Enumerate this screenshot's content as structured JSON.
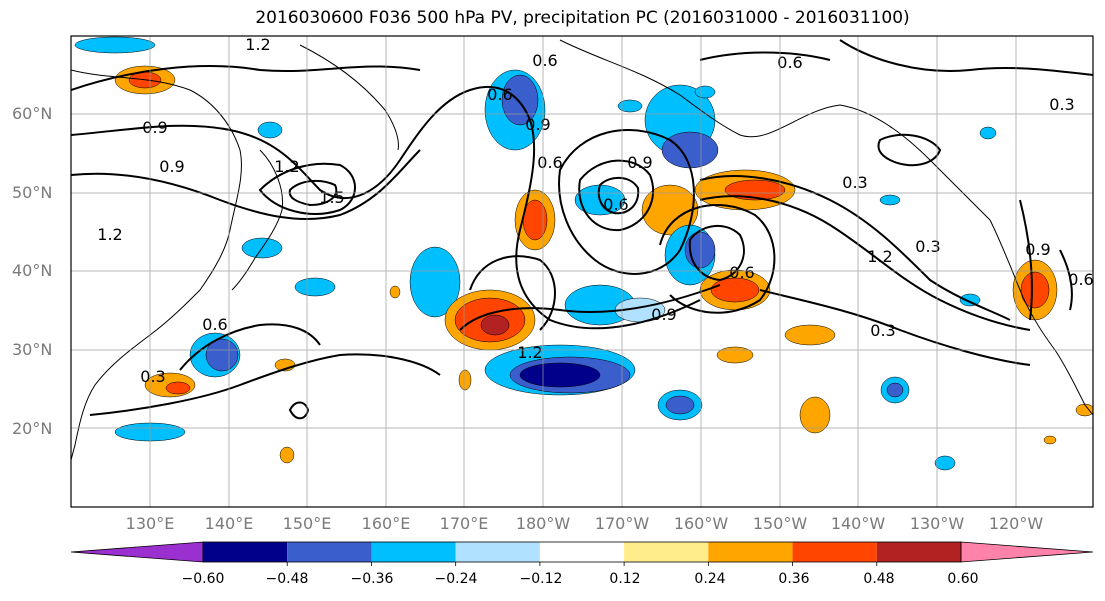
{
  "title": "2016030600 F036 500 hPa PV, precipitation PC (2016031000 - 2016031100)",
  "lat_labels": [
    "60°N",
    "50°N",
    "40°N",
    "30°N",
    "20°N"
  ],
  "lon_labels": [
    "130°E",
    "140°E",
    "150°E",
    "160°E",
    "170°E",
    "180°W",
    "170°W",
    "160°W",
    "150°W",
    "140°W",
    "130°W",
    "120°W"
  ],
  "contour_labels": [
    "1.2",
    "0.9",
    "0.9",
    "1.2",
    "1.5",
    "1.2",
    "0.6",
    "0.3",
    "0.6",
    "0.9",
    "0.6",
    "0.6",
    "0.9",
    "1.2",
    "0.6",
    "0.9",
    "0.3",
    "1.2",
    "0.3",
    "0.6",
    "0.3",
    "0.6",
    "0.9",
    "0.6",
    "0.3"
  ],
  "colorbar": {
    "ticks": [
      "−0.60",
      "−0.48",
      "−0.36",
      "−0.24",
      "−0.12",
      "0.12",
      "0.24",
      "0.36",
      "0.48",
      "0.60"
    ],
    "colors": [
      "#9b30d0",
      "#00008b",
      "#3a5fcd",
      "#00bfff",
      "#b0e2ff",
      "#ffffff",
      "#ffec8b",
      "#ffa500",
      "#ff4500",
      "#b22222",
      "#ff82ab"
    ]
  },
  "fill_colors": {
    "neg1": "#b0e2ff",
    "neg2": "#00bfff",
    "neg3": "#3a5fcd",
    "neg4": "#00008b",
    "pos1": "#ffec8b",
    "pos2": "#ffa500",
    "pos3": "#ff4500",
    "pos4": "#b22222"
  }
}
